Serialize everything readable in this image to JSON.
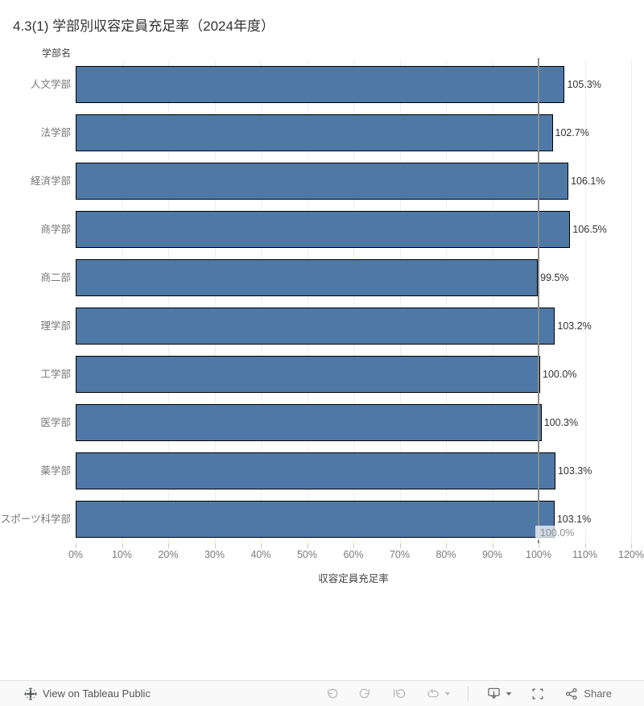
{
  "title": "4.3(1) 学部別収容定員充足率（2024年度）",
  "chart_data": {
    "type": "bar",
    "orientation": "horizontal",
    "row_header": "学部名",
    "categories": [
      "人文学部",
      "法学部",
      "経済学部",
      "商学部",
      "商二部",
      "理学部",
      "工学部",
      "医学部",
      "薬学部",
      "スポーツ科学部"
    ],
    "values": [
      105.3,
      102.7,
      106.1,
      106.5,
      99.5,
      103.2,
      100.0,
      100.3,
      103.3,
      103.1
    ],
    "value_labels": [
      "105.3%",
      "102.7%",
      "106.1%",
      "106.5%",
      "99.5%",
      "103.2%",
      "100.0%",
      "100.3%",
      "103.3%",
      "103.1%"
    ],
    "xlabel": "収容定員充足率",
    "xlim": [
      0,
      120
    ],
    "x_tick_step": 10,
    "x_ticks": [
      "0%",
      "10%",
      "20%",
      "30%",
      "40%",
      "50%",
      "60%",
      "70%",
      "80%",
      "90%",
      "100%",
      "110%",
      "120%"
    ],
    "grid": true,
    "legend": "none",
    "reference_line": {
      "value": 100,
      "label": "100.0%",
      "color": "#8a8a8a"
    },
    "bar_color": "#4e79a7",
    "bar_border_color": "#000000"
  },
  "toolbar": {
    "view_on_label": "View on Tableau Public",
    "share_label": "Share",
    "icons": [
      "tableau-logo",
      "undo",
      "redo",
      "revert",
      "refresh",
      "caret-down",
      "download",
      "fullscreen",
      "share"
    ]
  }
}
